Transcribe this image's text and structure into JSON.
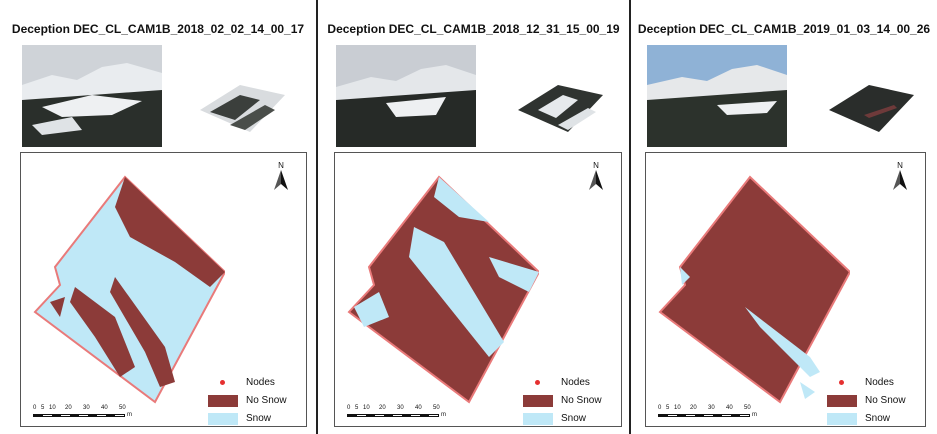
{
  "colors": {
    "no_snow": "#8c3b39",
    "snow": "#bfe8f7",
    "node": "#e53030",
    "boundary": "#e97a7a"
  },
  "panels": [
    {
      "title": "Deception DEC_CL_CAM1B_2018_02_02_14_00_17",
      "snow_fraction": 0.6
    },
    {
      "title": "Deception DEC_CL_CAM1B_2018_12_31_15_00_19",
      "snow_fraction": 0.4
    },
    {
      "title": "Deception DEC_CL_CAM1B_2019_01_03_14_00_26",
      "snow_fraction": 0.08
    }
  ],
  "north_label": "N",
  "legend": {
    "nodes": "Nodes",
    "no_snow": "No Snow",
    "snow": "Snow"
  },
  "scale": {
    "ticks": [
      "0",
      "5",
      "10",
      "20",
      "30",
      "40",
      "50"
    ],
    "unit": "m"
  }
}
